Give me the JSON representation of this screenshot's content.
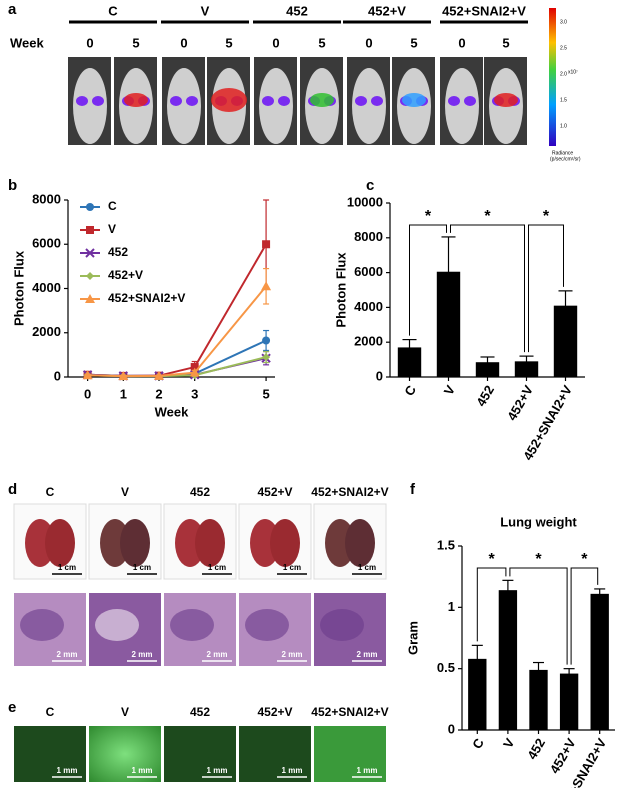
{
  "chart_data": [
    {
      "type": "line",
      "xlabel": "Week",
      "ylabel": "Photon Flux",
      "x": [
        0,
        1,
        2,
        3,
        5
      ],
      "xlim": [
        -0.55,
        5.25
      ],
      "xticks": [
        0,
        1,
        2,
        3,
        5
      ],
      "ylim": [
        0,
        8000
      ],
      "yticks": [
        0,
        2000,
        4000,
        6000,
        8000
      ],
      "grid": false,
      "legend": "upper left",
      "series": [
        {
          "name": "C",
          "color": "#2e75b6",
          "marker": "circle",
          "values": [
            100,
            50,
            50,
            150,
            1650
          ],
          "errors": [
            50,
            30,
            30,
            100,
            450
          ]
        },
        {
          "name": "V",
          "color": "#c0282d",
          "marker": "square",
          "values": [
            100,
            50,
            60,
            450,
            6000
          ],
          "errors": [
            50,
            30,
            30,
            250,
            2000
          ]
        },
        {
          "name": "452",
          "color": "#7030a0",
          "marker": "x",
          "values": [
            100,
            50,
            50,
            100,
            850
          ],
          "errors": [
            50,
            30,
            30,
            50,
            300
          ]
        },
        {
          "name": "452+V",
          "color": "#9bbb59",
          "marker": "diamond",
          "values": [
            80,
            40,
            40,
            80,
            900
          ],
          "errors": [
            40,
            30,
            30,
            50,
            250
          ]
        },
        {
          "name": "452+SNAI2+V",
          "color": "#f79646",
          "marker": "triangle",
          "values": [
            80,
            40,
            50,
            200,
            4100
          ],
          "errors": [
            40,
            30,
            30,
            100,
            800
          ]
        }
      ]
    },
    {
      "type": "bar",
      "ylabel": "Photon Flux",
      "color": "#000000",
      "categories": [
        "C",
        "V",
        "452",
        "452+V",
        "452+SNAI2+V"
      ],
      "values": [
        1700,
        6050,
        850,
        900,
        4100
      ],
      "errors": [
        450,
        2000,
        300,
        300,
        850
      ],
      "ylim": [
        0,
        10000
      ],
      "yticks": [
        0,
        2000,
        4000,
        6000,
        8000,
        10000
      ],
      "grid": false,
      "significance": [
        {
          "label": "*",
          "pair": [
            "C",
            "V"
          ]
        },
        {
          "label": "*",
          "pair": [
            "V",
            "452+V"
          ]
        },
        {
          "label": "*",
          "pair": [
            "452+V",
            "452+SNAI2+V"
          ]
        }
      ]
    },
    {
      "type": "bar",
      "title": "Lung weight",
      "ylabel": "Gram",
      "color": "#000000",
      "categories": [
        "C",
        "V",
        "452",
        "452+V",
        "452+SNAI2+V"
      ],
      "values": [
        0.58,
        1.14,
        0.49,
        0.46,
        1.11
      ],
      "errors": [
        0.11,
        0.08,
        0.06,
        0.04,
        0.04
      ],
      "ylim": [
        0,
        1.5
      ],
      "yticks": [
        0,
        0.5,
        1,
        1.5
      ],
      "grid": false,
      "significance": [
        {
          "label": "*",
          "pair": [
            "C",
            "V"
          ]
        },
        {
          "label": "*",
          "pair": [
            "V",
            "452+V"
          ]
        },
        {
          "label": "*",
          "pair": [
            "452+V",
            "452+SNAI2+V"
          ]
        }
      ]
    }
  ],
  "panels": {
    "letters": [
      "a",
      "b",
      "c",
      "d",
      "e",
      "f"
    ],
    "groups": [
      "C",
      "V",
      "452",
      "452+V",
      "452+SNAI2+V"
    ],
    "week_label": "Week",
    "weeks": [
      "0",
      "5"
    ],
    "colorbar": {
      "exponent": "x10⁷",
      "ticks": [
        "3.0",
        "2.5",
        "2.0",
        "1.5",
        "1.0"
      ],
      "title": "Radiance",
      "unit": "(p/sec/cm²/sr)"
    },
    "scale_lung": "1 cm",
    "scale_histology": "2 mm",
    "scale_fluorescence": "1 mm"
  }
}
